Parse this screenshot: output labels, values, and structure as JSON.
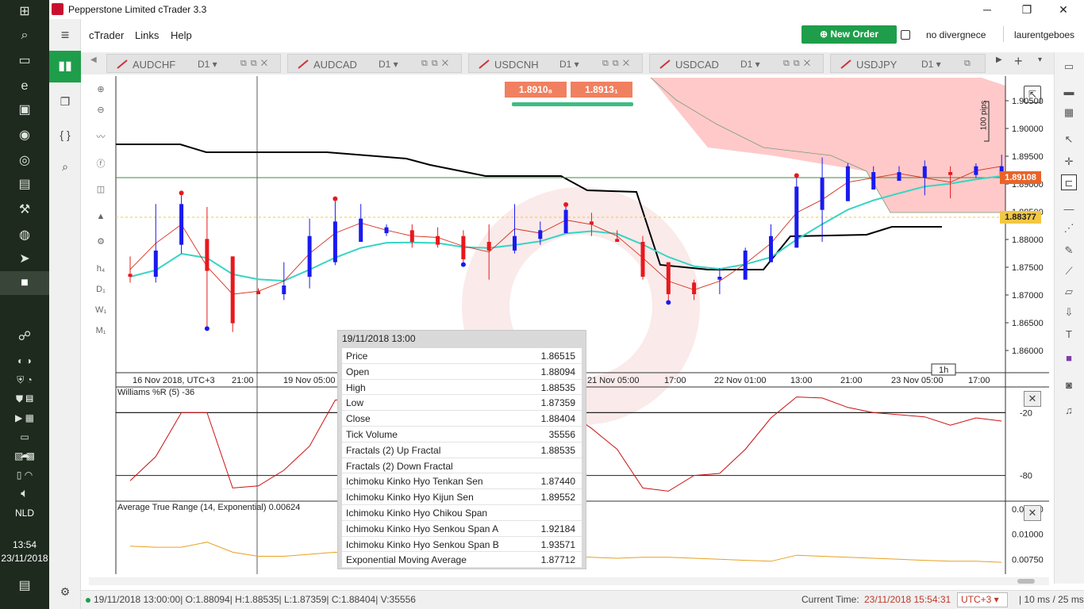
{
  "window": {
    "title": "Pepperstone Limited cTrader 3.3",
    "minimize": "─",
    "maximize": "❐",
    "close": "✕"
  },
  "taskbar": {
    "lang": "NLD",
    "time": "13:54",
    "date": "23/11/2018"
  },
  "menu": {
    "items": [
      "cTrader",
      "Links",
      "Help"
    ],
    "new_order": "New Order",
    "divergence": "no divergnece",
    "user": "laurentgeboes"
  },
  "tabs": [
    {
      "symbol": "AUDCHF",
      "tf": "D1 ▾"
    },
    {
      "symbol": "AUDCAD",
      "tf": "D1 ▾"
    },
    {
      "symbol": "USDCNH",
      "tf": "D1 ▾"
    },
    {
      "symbol": "USDCAD",
      "tf": "D1 ▾"
    },
    {
      "symbol": "USDJPY",
      "tf": "D1 ▾"
    }
  ],
  "chart": {
    "bid": "1.8910₈",
    "ask": "1.8913₁",
    "current_price": "1.89108",
    "secondary_price": "1.88377",
    "pips_label": "100 pips",
    "price_ticks": [
      "1.90500",
      "1.90000",
      "1.89500",
      "1.89000",
      "1.88500",
      "1.88000",
      "1.87500",
      "1.87000",
      "1.86500",
      "1.86000"
    ],
    "time_ticks": [
      "16 Nov 2018, UTC+3",
      "21:00",
      "19 Nov 05:00",
      "21 Nov 05:00",
      "17:00",
      "22 Nov 01:00",
      "13:00",
      "21:00",
      "23 Nov 05:00",
      "17:00"
    ],
    "timeframe_badge": "1h",
    "colors": {
      "bull": "#1a1af0",
      "bear": "#e8181c",
      "cloud": "#ffc9c9",
      "tenkan": "#d2301a",
      "kijun": "#000000",
      "ema": "#38d4c4"
    }
  },
  "chart_data": {
    "type": "candlestick",
    "ylim": [
      1.8555,
      1.9065
    ],
    "candles": [
      {
        "o": 1.8725,
        "h": 1.8755,
        "l": 1.871,
        "c": 1.872
      },
      {
        "o": 1.872,
        "h": 1.8845,
        "l": 1.871,
        "c": 1.8765
      },
      {
        "o": 1.8775,
        "h": 1.886,
        "l": 1.876,
        "c": 1.8845
      },
      {
        "o": 1.8785,
        "h": 1.884,
        "l": 1.8635,
        "c": 1.873
      },
      {
        "o": 1.8755,
        "h": 1.8755,
        "l": 1.8625,
        "c": 1.864
      },
      {
        "o": 1.8695,
        "h": 1.87,
        "l": 1.869,
        "c": 1.869
      },
      {
        "o": 1.869,
        "h": 1.8745,
        "l": 1.868,
        "c": 1.8705
      },
      {
        "o": 1.872,
        "h": 1.882,
        "l": 1.87,
        "c": 1.879
      },
      {
        "o": 1.8745,
        "h": 1.885,
        "l": 1.874,
        "c": 1.8815
      },
      {
        "o": 1.878,
        "h": 1.8845,
        "l": 1.878,
        "c": 1.882
      },
      {
        "o": 1.8795,
        "h": 1.881,
        "l": 1.879,
        "c": 1.8805
      },
      {
        "o": 1.88,
        "h": 1.881,
        "l": 1.877,
        "c": 1.878
      },
      {
        "o": 1.879,
        "h": 1.8805,
        "l": 1.877,
        "c": 1.8775
      },
      {
        "o": 1.879,
        "h": 1.88,
        "l": 1.8745,
        "c": 1.875
      },
      {
        "o": 1.878,
        "h": 1.881,
        "l": 1.8715,
        "c": 1.8765
      },
      {
        "o": 1.8765,
        "h": 1.8845,
        "l": 1.876,
        "c": 1.879
      },
      {
        "o": 1.8785,
        "h": 1.8815,
        "l": 1.8775,
        "c": 1.88
      },
      {
        "o": 1.8795,
        "h": 1.884,
        "l": 1.8795,
        "c": 1.8835
      },
      {
        "o": 1.8815,
        "h": 1.883,
        "l": 1.879,
        "c": 1.881
      },
      {
        "o": 1.8785,
        "h": 1.88,
        "l": 1.878,
        "c": 1.878
      },
      {
        "o": 1.878,
        "h": 1.879,
        "l": 1.8715,
        "c": 1.872
      },
      {
        "o": 1.8745,
        "h": 1.8745,
        "l": 1.868,
        "c": 1.869
      },
      {
        "o": 1.871,
        "h": 1.8715,
        "l": 1.868,
        "c": 1.869
      },
      {
        "o": 1.8715,
        "h": 1.8735,
        "l": 1.869,
        "c": 1.872
      },
      {
        "o": 1.8715,
        "h": 1.877,
        "l": 1.8715,
        "c": 1.8765
      },
      {
        "o": 1.8745,
        "h": 1.881,
        "l": 1.8745,
        "c": 1.879
      },
      {
        "o": 1.877,
        "h": 1.889,
        "l": 1.877,
        "c": 1.8875
      },
      {
        "o": 1.8835,
        "h": 1.8925,
        "l": 1.878,
        "c": 1.889
      },
      {
        "o": 1.885,
        "h": 1.8915,
        "l": 1.885,
        "c": 1.891
      },
      {
        "o": 1.887,
        "h": 1.891,
        "l": 1.887,
        "c": 1.89
      },
      {
        "o": 1.8885,
        "h": 1.891,
        "l": 1.8885,
        "c": 1.89
      },
      {
        "o": 1.889,
        "h": 1.892,
        "l": 1.886,
        "c": 1.891
      },
      {
        "o": 1.89,
        "h": 1.891,
        "l": 1.8855,
        "c": 1.8895
      },
      {
        "o": 1.8895,
        "h": 1.8915,
        "l": 1.889,
        "c": 1.891
      },
      {
        "o": 1.8895,
        "h": 1.893,
        "l": 1.889,
        "c": 1.891
      }
    ],
    "williams_r": [
      -85,
      -62,
      -20,
      -20,
      -92,
      -90,
      -75,
      -52,
      -8,
      -5,
      -12,
      -15,
      -18,
      -22,
      -35,
      -25,
      -22,
      -18,
      -35,
      -55,
      -92,
      -95,
      -80,
      -78,
      -55,
      -25,
      -5,
      -6,
      -15,
      -20,
      -22,
      -24,
      -32,
      -25,
      -28
    ],
    "atr": [
      0.0088,
      0.0087,
      0.0087,
      0.0092,
      0.0082,
      0.0078,
      0.0078,
      0.008,
      0.0082,
      0.0079,
      0.0079,
      0.0078,
      0.0078,
      0.0078,
      0.0077,
      0.0077,
      0.0077,
      0.0078,
      0.0077,
      0.0076,
      0.0077,
      0.0077,
      0.0076,
      0.0075,
      0.0074,
      0.0073,
      0.0079,
      0.0078,
      0.0077,
      0.0076,
      0.0075,
      0.0074,
      0.0073,
      0.0073,
      0.0072
    ]
  },
  "williams": {
    "label": "Williams %R (5) -36",
    "ticks": [
      "-20",
      "-80"
    ]
  },
  "atr_panel": {
    "label": "Average True Range (14, Exponential) 0.00624",
    "ticks": [
      "0.01250",
      "0.01000",
      "0.00750"
    ]
  },
  "tooltip": {
    "header": "19/11/2018 13:00",
    "rows": [
      {
        "label": "Price",
        "value": "1.86515"
      },
      {
        "label": "Open",
        "value": "1.88094"
      },
      {
        "label": "High",
        "value": "1.88535"
      },
      {
        "label": "Low",
        "value": "1.87359"
      },
      {
        "label": "Close",
        "value": "1.88404"
      },
      {
        "label": "Tick Volume",
        "value": "35556"
      },
      {
        "label": "Fractals (2) Up Fractal",
        "value": "1.88535"
      },
      {
        "label": "Fractals (2) Down Fractal",
        "value": ""
      },
      {
        "label": "Ichimoku Kinko Hyo Tenkan Sen",
        "value": "1.87440"
      },
      {
        "label": "Ichimoku Kinko Hyo Kijun Sen",
        "value": "1.89552"
      },
      {
        "label": "Ichimoku Kinko Hyo Chikou Span",
        "value": ""
      },
      {
        "label": "Ichimoku Kinko Hyo Senkou Span A",
        "value": "1.92184"
      },
      {
        "label": "Ichimoku Kinko Hyo Senkou Span B",
        "value": "1.93571"
      },
      {
        "label": "Exponential Moving Average",
        "value": "1.87712"
      }
    ]
  },
  "status": {
    "left": "19/11/2018 13:00:00| O:1.88094| H:1.88535| L:1.87359| C:1.88404| V:35556",
    "current_time_label": "Current Time:",
    "current_time": "23/11/2018 15:54:31",
    "tz": "UTC+3 ▾",
    "latency": "| 10 ms / 25 ms"
  }
}
